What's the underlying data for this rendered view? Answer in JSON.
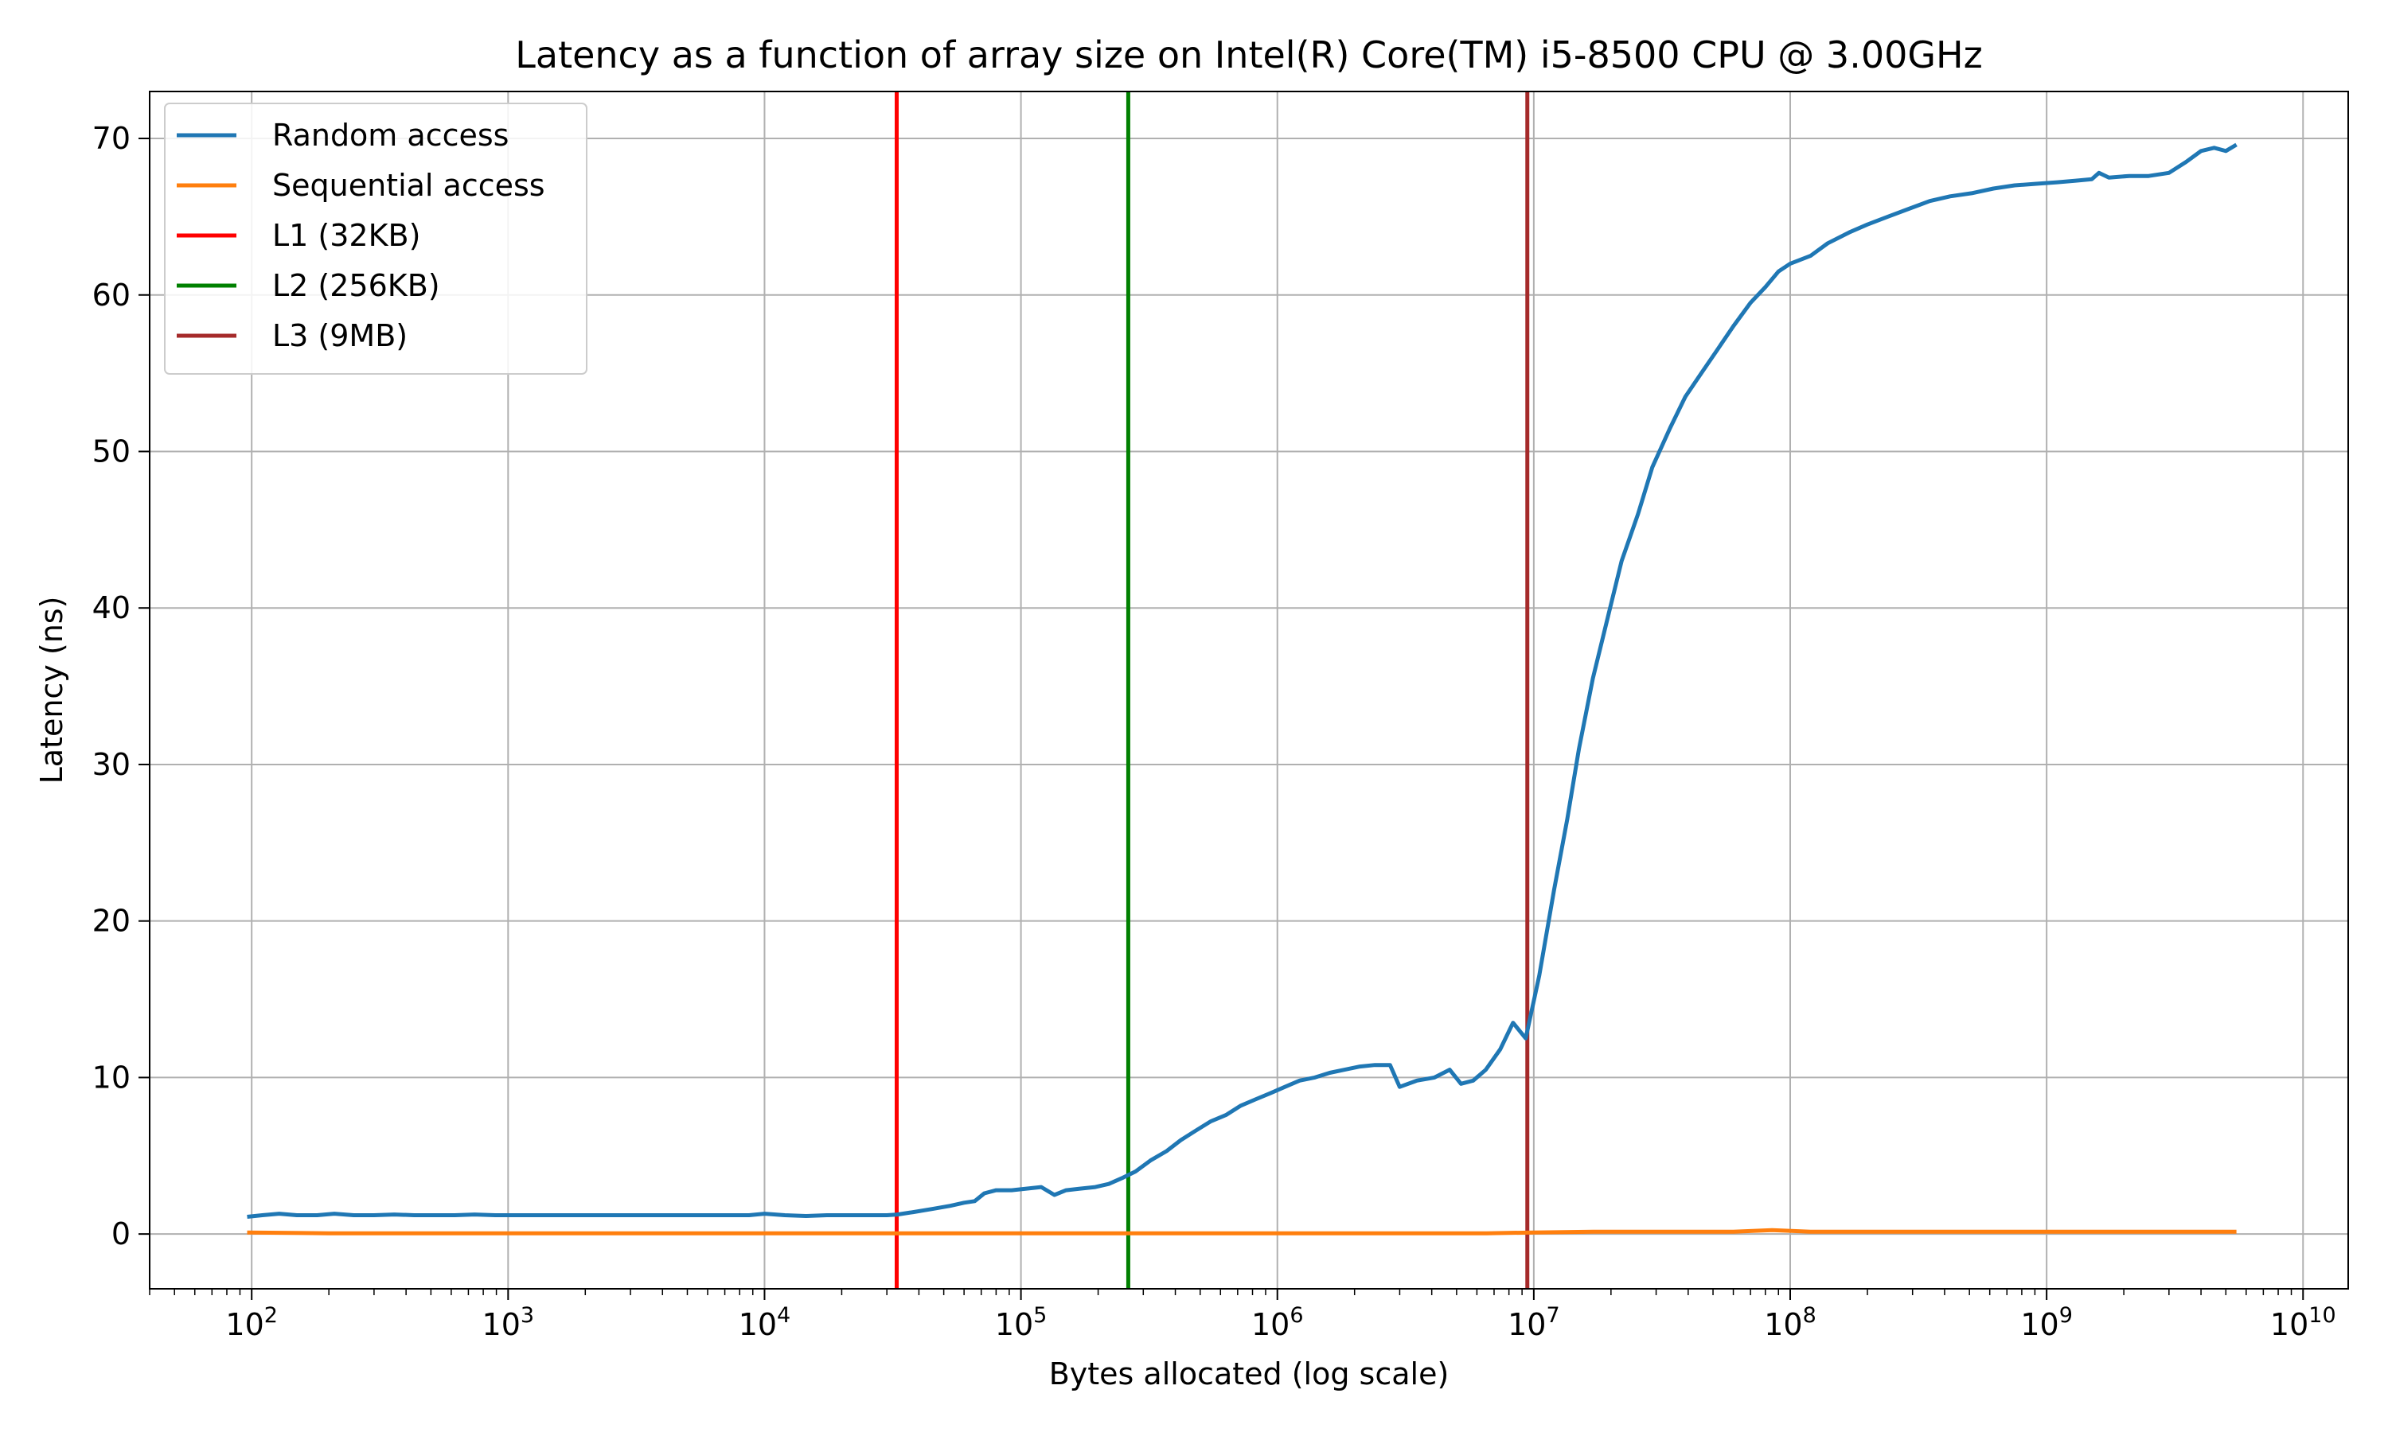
{
  "chart_data": {
    "type": "line",
    "title": "Latency as a function of array size on Intel(R) Core(TM) i5-8500 CPU @ 3.00GHz",
    "xlabel": "Bytes allocated (log scale)",
    "ylabel": "Latency (ns)",
    "xscale": "log",
    "xlim": [
      40,
      15000000000
    ],
    "ylim": [
      -3.5,
      73
    ],
    "grid": true,
    "legend_position": "top-left",
    "x_ticks": [
      {
        "value": 100,
        "base": "10",
        "exp": "2"
      },
      {
        "value": 1000,
        "base": "10",
        "exp": "3"
      },
      {
        "value": 10000,
        "base": "10",
        "exp": "4"
      },
      {
        "value": 100000,
        "base": "10",
        "exp": "5"
      },
      {
        "value": 1000000,
        "base": "10",
        "exp": "6"
      },
      {
        "value": 10000000,
        "base": "10",
        "exp": "7"
      },
      {
        "value": 100000000,
        "base": "10",
        "exp": "8"
      },
      {
        "value": 1000000000,
        "base": "10",
        "exp": "9"
      },
      {
        "value": 10000000000,
        "base": "10",
        "exp": "10"
      }
    ],
    "y_ticks": [
      {
        "value": 0,
        "label": "0"
      },
      {
        "value": 10,
        "label": "10"
      },
      {
        "value": 20,
        "label": "20"
      },
      {
        "value": 30,
        "label": "30"
      },
      {
        "value": 40,
        "label": "40"
      },
      {
        "value": 50,
        "label": "50"
      },
      {
        "value": 60,
        "label": "60"
      },
      {
        "value": 70,
        "label": "70"
      }
    ],
    "series": [
      {
        "name": "Random access",
        "color": "#1f77b4",
        "points": [
          [
            96,
            1.1
          ],
          [
            110,
            1.2
          ],
          [
            128,
            1.3
          ],
          [
            150,
            1.2
          ],
          [
            180,
            1.2
          ],
          [
            210,
            1.3
          ],
          [
            250,
            1.2
          ],
          [
            300,
            1.2
          ],
          [
            360,
            1.25
          ],
          [
            430,
            1.2
          ],
          [
            520,
            1.2
          ],
          [
            620,
            1.2
          ],
          [
            740,
            1.25
          ],
          [
            890,
            1.2
          ],
          [
            1100,
            1.2
          ],
          [
            1300,
            1.2
          ],
          [
            1600,
            1.2
          ],
          [
            1900,
            1.2
          ],
          [
            2300,
            1.2
          ],
          [
            2800,
            1.2
          ],
          [
            3400,
            1.2
          ],
          [
            4100,
            1.2
          ],
          [
            5000,
            1.2
          ],
          [
            6000,
            1.2
          ],
          [
            7200,
            1.2
          ],
          [
            8700,
            1.2
          ],
          [
            10000,
            1.3
          ],
          [
            12000,
            1.2
          ],
          [
            14500,
            1.15
          ],
          [
            17500,
            1.2
          ],
          [
            21000,
            1.2
          ],
          [
            25000,
            1.2
          ],
          [
            30000,
            1.2
          ],
          [
            33000,
            1.25
          ],
          [
            38000,
            1.4
          ],
          [
            45000,
            1.6
          ],
          [
            53000,
            1.8
          ],
          [
            60000,
            2.0
          ],
          [
            66000,
            2.1
          ],
          [
            72000,
            2.6
          ],
          [
            80000,
            2.8
          ],
          [
            92000,
            2.8
          ],
          [
            105000,
            2.9
          ],
          [
            120000,
            3.0
          ],
          [
            135000,
            2.5
          ],
          [
            150000,
            2.8
          ],
          [
            170000,
            2.9
          ],
          [
            195000,
            3.0
          ],
          [
            220000,
            3.2
          ],
          [
            250000,
            3.6
          ],
          [
            280000,
            4.0
          ],
          [
            320000,
            4.7
          ],
          [
            370000,
            5.3
          ],
          [
            420000,
            6.0
          ],
          [
            480000,
            6.6
          ],
          [
            550000,
            7.2
          ],
          [
            630000,
            7.6
          ],
          [
            720000,
            8.2
          ],
          [
            820000,
            8.6
          ],
          [
            940000,
            9.0
          ],
          [
            1070000,
            9.4
          ],
          [
            1220000,
            9.8
          ],
          [
            1400000,
            10.0
          ],
          [
            1600000,
            10.3
          ],
          [
            1830000,
            10.5
          ],
          [
            2100000,
            10.7
          ],
          [
            2400000,
            10.8
          ],
          [
            2750000,
            10.8
          ],
          [
            3000000,
            9.4
          ],
          [
            3500000,
            9.8
          ],
          [
            4100000,
            10.0
          ],
          [
            4700000,
            10.5
          ],
          [
            5200000,
            9.6
          ],
          [
            5800000,
            9.8
          ],
          [
            6500000,
            10.5
          ],
          [
            7400000,
            11.8
          ],
          [
            8300000,
            13.5
          ],
          [
            9300000,
            12.5
          ],
          [
            10500000,
            16.5
          ],
          [
            12000000,
            22.0
          ],
          [
            13500000,
            26.5
          ],
          [
            15000000,
            31.0
          ],
          [
            17000000,
            35.5
          ],
          [
            19500000,
            39.5
          ],
          [
            22000000,
            43.0
          ],
          [
            25500000,
            46.0
          ],
          [
            29000000,
            49.0
          ],
          [
            34000000,
            51.5
          ],
          [
            39000000,
            53.5
          ],
          [
            45000000,
            55.0
          ],
          [
            52000000,
            56.5
          ],
          [
            60000000,
            58.0
          ],
          [
            70000000,
            59.5
          ],
          [
            80000000,
            60.5
          ],
          [
            90000000,
            61.5
          ],
          [
            100000000,
            62.0
          ],
          [
            120000000,
            62.5
          ],
          [
            140000000,
            63.3
          ],
          [
            170000000,
            64.0
          ],
          [
            200000000,
            64.5
          ],
          [
            240000000,
            65.0
          ],
          [
            290000000,
            65.5
          ],
          [
            350000000,
            66.0
          ],
          [
            420000000,
            66.3
          ],
          [
            510000000,
            66.5
          ],
          [
            620000000,
            66.8
          ],
          [
            750000000,
            67.0
          ],
          [
            900000000,
            67.1
          ],
          [
            1100000000,
            67.2
          ],
          [
            1300000000,
            67.3
          ],
          [
            1500000000,
            67.4
          ],
          [
            1600000000,
            67.8
          ],
          [
            1750000000,
            67.5
          ],
          [
            2100000000,
            67.6
          ],
          [
            2500000000,
            67.6
          ],
          [
            3000000000,
            67.8
          ],
          [
            3500000000,
            68.5
          ],
          [
            4000000000,
            69.2
          ],
          [
            4500000000,
            69.4
          ],
          [
            5000000000,
            69.2
          ],
          [
            5500000000,
            69.6
          ]
        ]
      },
      {
        "name": "Sequential access",
        "color": "#ff7f0e",
        "points": [
          [
            96,
            0.1
          ],
          [
            200,
            0.05
          ],
          [
            400,
            0.05
          ],
          [
            800,
            0.05
          ],
          [
            1600,
            0.05
          ],
          [
            3200,
            0.05
          ],
          [
            6400,
            0.05
          ],
          [
            12800,
            0.05
          ],
          [
            25600,
            0.05
          ],
          [
            51200,
            0.05
          ],
          [
            102400,
            0.05
          ],
          [
            204800,
            0.05
          ],
          [
            409600,
            0.05
          ],
          [
            819200,
            0.05
          ],
          [
            1638400,
            0.05
          ],
          [
            3276800,
            0.05
          ],
          [
            6553600,
            0.05
          ],
          [
            10000000,
            0.1
          ],
          [
            17000000,
            0.15
          ],
          [
            30000000,
            0.15
          ],
          [
            60000000,
            0.15
          ],
          [
            85000000,
            0.25
          ],
          [
            120000000,
            0.15
          ],
          [
            250000000,
            0.15
          ],
          [
            500000000,
            0.15
          ],
          [
            1000000000,
            0.15
          ],
          [
            2000000000,
            0.15
          ],
          [
            4000000000,
            0.15
          ],
          [
            5500000000,
            0.15
          ]
        ]
      }
    ],
    "vlines": [
      {
        "name": "L1 (32KB)",
        "x": 32768,
        "color": "#ff0000"
      },
      {
        "name": "L2 (256KB)",
        "x": 262144,
        "color": "#008000"
      },
      {
        "name": "L3 (9MB)",
        "x": 9437184,
        "color": "#a52a2a"
      }
    ]
  }
}
